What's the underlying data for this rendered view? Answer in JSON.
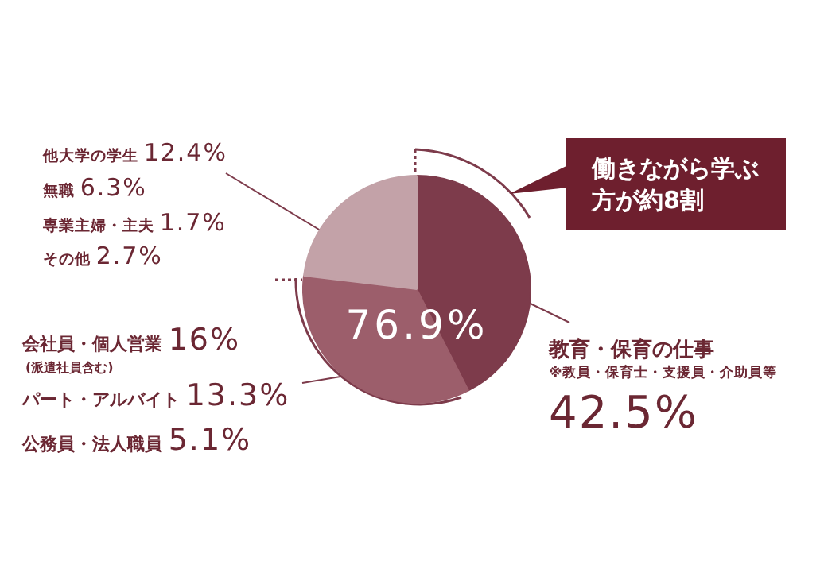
{
  "chart_data": {
    "type": "pie",
    "categories": [
      "教育・保育の仕事",
      null,
      null
    ],
    "values": [
      42.5,
      34.4,
      23.1
    ],
    "colors": [
      "#7d3b4b",
      "#9c5e6b",
      "#c3a2a8"
    ],
    "value_labels": [
      "42.5%",
      null,
      null
    ],
    "legend": false,
    "annotations": [
      "76.9%",
      "働きながら学ぶ方が約8割",
      "他大学の学生 12.4%",
      "無職 6.3%",
      "専業主婦・主夫 1.7%",
      "その他 2.7%",
      "会社員・個人営業 16%",
      "(派遣社員含む)",
      "パート・アルバイト 13.3%",
      "公務員・法人職員 5.1%",
      "※教員・保育士・支援員・介助員等"
    ]
  }
}
